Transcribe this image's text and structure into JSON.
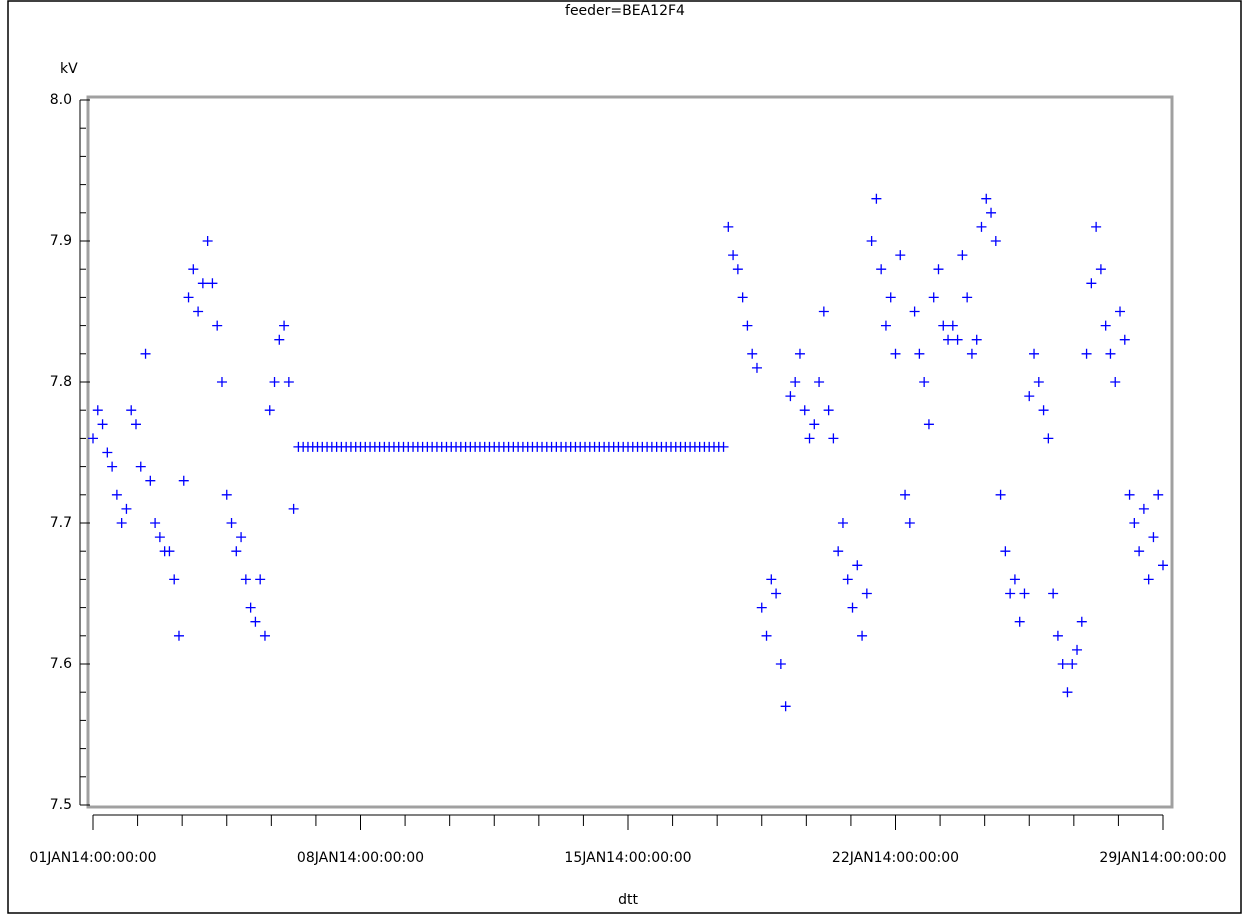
{
  "chart_data": {
    "type": "scatter",
    "title": "feeder=BEA12F4",
    "ylabel": "kV",
    "xlabel": "dtt",
    "xlim": [
      0,
      28
    ],
    "ylim": [
      7.5,
      8.0
    ],
    "xticks": [
      {
        "value": 0,
        "label": "01JAN14:00:00:00"
      },
      {
        "value": 7,
        "label": "08JAN14:00:00:00"
      },
      {
        "value": 14,
        "label": "15JAN14:00:00:00"
      },
      {
        "value": 21,
        "label": "22JAN14:00:00:00"
      },
      {
        "value": 28,
        "label": "29JAN14:00:00:00"
      }
    ],
    "xminorticks": [
      1.1667,
      2.3333,
      3.5,
      4.6667,
      5.8333,
      8.1667,
      9.3333,
      10.5,
      11.6667,
      12.8333,
      15.1667,
      16.3333,
      17.5,
      18.6667,
      19.8333,
      22.1667,
      23.3333,
      24.5,
      25.6667,
      26.8333
    ],
    "yticks": [
      7.5,
      7.6,
      7.7,
      7.8,
      7.9,
      {
        "value": 8,
        "label": "8.0"
      }
    ],
    "yminorticks": [
      7.52,
      7.54,
      7.56,
      7.58,
      7.62,
      7.64,
      7.66,
      7.68,
      7.72,
      7.74,
      7.76,
      7.78,
      7.82,
      7.84,
      7.86,
      7.88,
      7.92,
      7.94,
      7.96,
      7.98
    ],
    "marker": "+",
    "color": "#0000ff",
    "x": [
      0,
      0.125,
      0.25,
      0.375,
      0.5,
      0.625,
      0.75,
      0.875,
      1,
      1.125,
      1.25,
      1.375,
      1.5,
      1.625,
      1.75,
      1.875,
      2,
      2.125,
      2.25,
      2.375,
      2.5,
      2.625,
      2.75,
      2.875,
      3,
      3.125,
      3.25,
      3.375,
      3.5,
      3.625,
      3.75,
      3.875,
      4,
      4.125,
      4.25,
      4.375,
      4.5,
      4.625,
      4.75,
      4.875,
      5,
      5.125,
      5.25,
      5.375,
      5.5,
      5.625,
      5.75,
      5.875,
      6,
      6.125,
      6.25,
      6.375,
      6.5,
      6.625,
      6.75,
      6.875,
      7,
      7.125,
      7.25,
      7.375,
      7.5,
      7.625,
      7.75,
      7.875,
      8,
      8.125,
      8.25,
      8.375,
      8.5,
      8.625,
      8.75,
      8.875,
      9,
      9.125,
      9.25,
      9.375,
      9.5,
      9.625,
      9.75,
      9.875,
      10,
      10.125,
      10.25,
      10.375,
      10.5,
      10.625,
      10.75,
      10.875,
      11,
      11.125,
      11.25,
      11.375,
      11.5,
      11.625,
      11.75,
      11.875,
      12,
      12.125,
      12.25,
      12.375,
      12.5,
      12.625,
      12.75,
      12.875,
      13,
      13.125,
      13.25,
      13.375,
      13.5,
      13.625,
      13.75,
      13.875,
      14,
      14.125,
      14.25,
      14.375,
      14.5,
      14.625,
      14.75,
      14.875,
      15,
      15.125,
      15.25,
      15.375,
      15.5,
      15.625,
      15.75,
      15.875,
      16,
      16.125,
      16.25,
      16.375,
      16.5,
      16.625,
      16.75,
      16.875,
      17,
      17.125,
      17.25,
      17.375,
      17.5,
      17.625,
      17.75,
      17.875,
      18,
      18.125,
      18.25,
      18.375,
      18.5,
      18.625,
      18.75,
      18.875,
      19,
      19.125,
      19.25,
      19.375,
      19.5,
      19.625,
      19.75,
      19.875,
      20,
      20.125,
      20.25,
      20.375,
      20.5,
      20.625,
      20.75,
      20.875,
      21,
      21.125,
      21.25,
      21.375,
      21.5,
      21.625,
      21.75,
      21.875,
      22,
      22.125,
      22.25,
      22.375,
      22.5,
      22.625,
      22.75,
      22.875,
      23,
      23.125,
      23.25,
      23.375,
      23.5,
      23.625,
      23.75,
      23.875,
      24,
      24.125,
      24.25,
      24.375,
      24.5,
      24.625,
      24.75,
      24.875,
      25,
      25.125,
      25.25,
      25.375,
      25.5,
      25.625,
      25.75,
      25.875,
      26,
      26.125,
      26.25,
      26.375,
      26.5,
      26.625,
      26.75,
      26.875,
      27,
      27.125,
      27.25,
      27.375,
      27.5,
      27.625,
      27.75,
      27.875,
      28
    ],
    "values": [
      7.76,
      7.78,
      7.77,
      7.75,
      7.74,
      7.72,
      7.7,
      7.71,
      7.78,
      7.77,
      7.74,
      7.82,
      7.73,
      7.7,
      7.69,
      7.68,
      7.68,
      7.66,
      7.62,
      7.73,
      7.86,
      7.88,
      7.85,
      7.87,
      7.9,
      7.87,
      7.84,
      7.8,
      7.72,
      7.7,
      7.68,
      7.69,
      7.66,
      7.64,
      7.63,
      7.66,
      7.62,
      7.78,
      7.8,
      7.83,
      7.84,
      7.8,
      7.71,
      7.754,
      7.754,
      7.754,
      7.754,
      7.754,
      7.754,
      7.754,
      7.754,
      7.754,
      7.754,
      7.754,
      7.754,
      7.754,
      7.754,
      7.754,
      7.754,
      7.754,
      7.754,
      7.754,
      7.754,
      7.754,
      7.754,
      7.754,
      7.754,
      7.754,
      7.754,
      7.754,
      7.754,
      7.754,
      7.754,
      7.754,
      7.754,
      7.754,
      7.754,
      7.754,
      7.754,
      7.754,
      7.754,
      7.754,
      7.754,
      7.754,
      7.754,
      7.754,
      7.754,
      7.754,
      7.754,
      7.754,
      7.754,
      7.754,
      7.754,
      7.754,
      7.754,
      7.754,
      7.754,
      7.754,
      7.754,
      7.754,
      7.754,
      7.754,
      7.754,
      7.754,
      7.754,
      7.754,
      7.754,
      7.754,
      7.754,
      7.754,
      7.754,
      7.754,
      7.754,
      7.754,
      7.754,
      7.754,
      7.754,
      7.754,
      7.754,
      7.754,
      7.754,
      7.754,
      7.754,
      7.754,
      7.754,
      7.754,
      7.754,
      7.754,
      7.754,
      7.754,
      7.754,
      7.754,
      7.754,
      7.91,
      7.89,
      7.88,
      7.86,
      7.84,
      7.82,
      7.81,
      7.64,
      7.62,
      7.66,
      7.65,
      7.6,
      7.57,
      7.79,
      7.8,
      7.82,
      7.78,
      7.76,
      7.77,
      7.8,
      7.85,
      7.78,
      7.76,
      7.68,
      7.7,
      7.66,
      7.64,
      7.67,
      7.62,
      7.65,
      7.9,
      7.93,
      7.88,
      7.84,
      7.86,
      7.82,
      7.89,
      7.72,
      7.7,
      7.85,
      7.82,
      7.8,
      7.77,
      7.86,
      7.88,
      7.84,
      7.83,
      7.84,
      7.83,
      7.89,
      7.86,
      7.82,
      7.83,
      7.91,
      7.93,
      7.92,
      7.9,
      7.72,
      7.68,
      7.65,
      7.66,
      7.63,
      7.65,
      7.79,
      7.82,
      7.8,
      7.78,
      7.76,
      7.65,
      7.62,
      7.6,
      7.58,
      7.6,
      7.61,
      7.63,
      7.82,
      7.87,
      7.91,
      7.88,
      7.84,
      7.82,
      7.8,
      7.85,
      7.83,
      7.72,
      7.7,
      7.68,
      7.71,
      7.66,
      7.69,
      7.72,
      7.67
    ]
  }
}
